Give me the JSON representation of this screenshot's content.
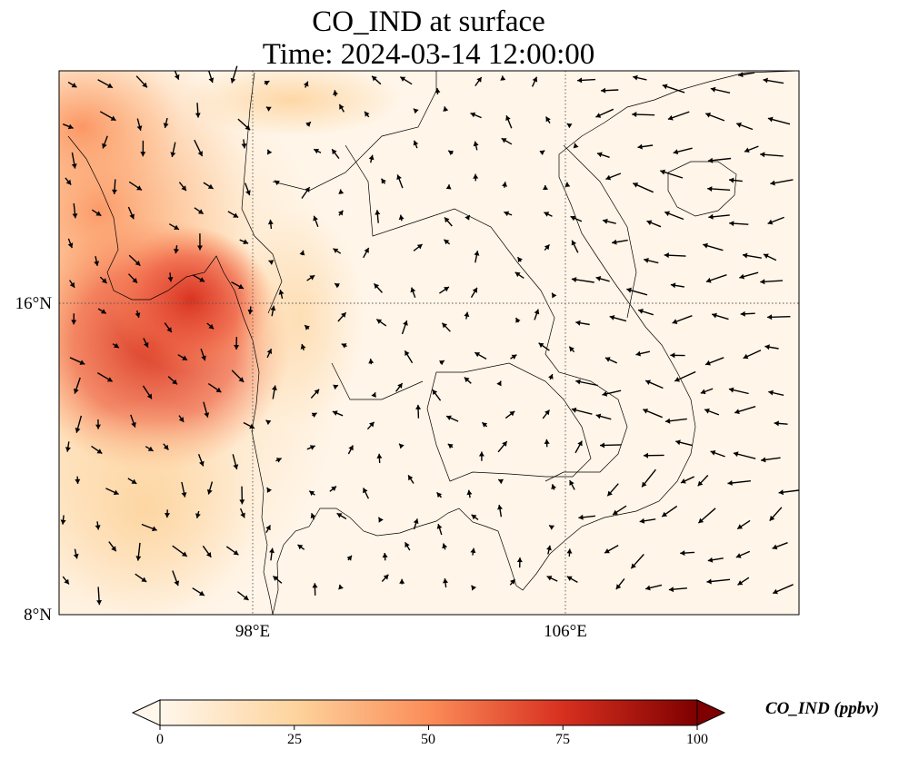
{
  "title": {
    "line1": "CO_IND at surface",
    "line2": "Time: 2024-03-14 12:00:00"
  },
  "map": {
    "lon_range": [
      93,
      112
    ],
    "lat_range": [
      8,
      22
    ],
    "x_ticks": [
      {
        "value": 98,
        "label": "98°E"
      },
      {
        "value": 106,
        "label": "106°E"
      }
    ],
    "y_ticks": [
      {
        "value": 16,
        "label": "16°N"
      },
      {
        "value": 8,
        "label": "8°N"
      }
    ],
    "gridlines": "dotted",
    "overlay": "wind vectors (quiver arrows)",
    "colormap": "OrRd",
    "land_outline_color": "#000000"
  },
  "colorbar": {
    "min": 0,
    "max": 100,
    "extend": "both",
    "ticks": [
      "0",
      "25",
      "50",
      "75",
      "100"
    ],
    "label": "CO_IND (ppbv)",
    "colors": [
      "#fff7ec",
      "#fdd49e",
      "#fc8d59",
      "#d7301f",
      "#7f0000"
    ]
  }
}
